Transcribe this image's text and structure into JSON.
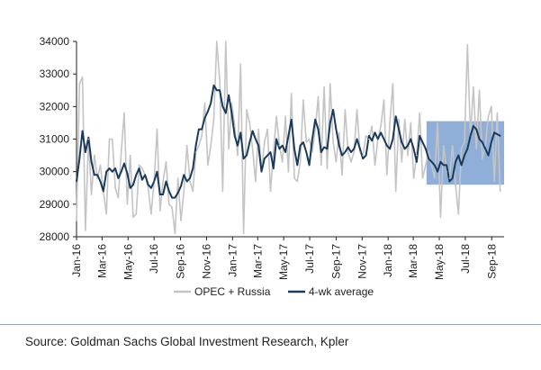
{
  "chart_data": {
    "type": "line",
    "ylim": [
      28000,
      34000
    ],
    "yticks": [
      28000,
      29000,
      30000,
      31000,
      32000,
      33000,
      34000
    ],
    "ytick_labels": [
      "28000",
      "29000",
      "30000",
      "31000",
      "32000",
      "33000",
      "34000"
    ],
    "xlim": [
      "2016-01-01",
      "2018-09-30"
    ],
    "xticks": [
      "2016-01-01",
      "2016-03-01",
      "2016-05-01",
      "2016-07-01",
      "2016-09-01",
      "2016-11-01",
      "2017-01-01",
      "2017-03-01",
      "2017-05-01",
      "2017-07-01",
      "2017-09-01",
      "2017-11-01",
      "2018-01-01",
      "2018-03-01",
      "2018-05-01",
      "2018-07-01",
      "2018-09-01"
    ],
    "xtick_labels": [
      "Jan-16",
      "Mar-16",
      "May-16",
      "Jul-16",
      "Sep-16",
      "Nov-16",
      "Jan-17",
      "Mar-17",
      "May-17",
      "Jul-17",
      "Sep-17",
      "Nov-17",
      "Jan-18",
      "Mar-18",
      "May-18",
      "Jul-18",
      "Sep-18"
    ],
    "grid": false,
    "legend_position": "bottom",
    "highlight": {
      "x": [
        "2018-04-01",
        "2018-09-30"
      ],
      "y": [
        29600,
        31550
      ],
      "color": "#4a7ec0"
    },
    "series": [
      {
        "name": "OPEC + Russia",
        "color": "#c4c4c4",
        "x": [
          "2016-01-01",
          "2016-01-08",
          "2016-01-15",
          "2016-01-22",
          "2016-01-29",
          "2016-02-05",
          "2016-02-12",
          "2016-02-19",
          "2016-02-26",
          "2016-03-04",
          "2016-03-11",
          "2016-03-18",
          "2016-03-25",
          "2016-04-01",
          "2016-04-08",
          "2016-04-15",
          "2016-04-22",
          "2016-04-29",
          "2016-05-06",
          "2016-05-13",
          "2016-05-20",
          "2016-05-27",
          "2016-06-03",
          "2016-06-10",
          "2016-06-17",
          "2016-06-24",
          "2016-07-01",
          "2016-07-08",
          "2016-07-15",
          "2016-07-22",
          "2016-07-29",
          "2016-08-05",
          "2016-08-12",
          "2016-08-19",
          "2016-08-26",
          "2016-09-02",
          "2016-09-09",
          "2016-09-16",
          "2016-09-23",
          "2016-09-30",
          "2016-10-07",
          "2016-10-14",
          "2016-10-21",
          "2016-10-28",
          "2016-11-04",
          "2016-11-11",
          "2016-11-18",
          "2016-11-25",
          "2016-12-02",
          "2016-12-09",
          "2016-12-16",
          "2016-12-23",
          "2016-12-30",
          "2017-01-06",
          "2017-01-13",
          "2017-01-20",
          "2017-01-27",
          "2017-02-03",
          "2017-02-10",
          "2017-02-17",
          "2017-02-24",
          "2017-03-03",
          "2017-03-10",
          "2017-03-17",
          "2017-03-24",
          "2017-03-31",
          "2017-04-07",
          "2017-04-14",
          "2017-04-21",
          "2017-04-28",
          "2017-05-05",
          "2017-05-12",
          "2017-05-19",
          "2017-05-26",
          "2017-06-02",
          "2017-06-09",
          "2017-06-16",
          "2017-06-23",
          "2017-06-30",
          "2017-07-07",
          "2017-07-14",
          "2017-07-21",
          "2017-07-28",
          "2017-08-04",
          "2017-08-11",
          "2017-08-18",
          "2017-08-25",
          "2017-09-01",
          "2017-09-08",
          "2017-09-15",
          "2017-09-22",
          "2017-09-29",
          "2017-10-06",
          "2017-10-13",
          "2017-10-20",
          "2017-10-27",
          "2017-11-03",
          "2017-11-10",
          "2017-11-17",
          "2017-11-24",
          "2017-12-01",
          "2017-12-08",
          "2017-12-15",
          "2017-12-22",
          "2017-12-29",
          "2018-01-05",
          "2018-01-12",
          "2018-01-19",
          "2018-01-26",
          "2018-02-02",
          "2018-02-09",
          "2018-02-16",
          "2018-02-23",
          "2018-03-02",
          "2018-03-09",
          "2018-03-16",
          "2018-03-23",
          "2018-03-30",
          "2018-04-06",
          "2018-04-13",
          "2018-04-20",
          "2018-04-27",
          "2018-05-04",
          "2018-05-11",
          "2018-05-18",
          "2018-05-25",
          "2018-06-01",
          "2018-06-08",
          "2018-06-15",
          "2018-06-22",
          "2018-06-29",
          "2018-07-06",
          "2018-07-13",
          "2018-07-20",
          "2018-07-27",
          "2018-08-03",
          "2018-08-10",
          "2018-08-17",
          "2018-08-24",
          "2018-08-31",
          "2018-09-07",
          "2018-09-14",
          "2018-09-21"
        ],
        "values": [
          28500,
          32700,
          32900,
          28200,
          31000,
          29300,
          30500,
          29800,
          30200,
          29400,
          28700,
          31000,
          31000,
          29500,
          29200,
          30600,
          31800,
          29000,
          30500,
          28600,
          28700,
          30200,
          30100,
          29900,
          29500,
          28700,
          29700,
          31300,
          28800,
          29700,
          30300,
          29000,
          28900,
          28100,
          29800,
          28500,
          29400,
          30800,
          29700,
          29400,
          30600,
          30800,
          31100,
          32100,
          30200,
          30800,
          31600,
          34000,
          32800,
          29400,
          34000,
          30700,
          32100,
          31400,
          30500,
          33300,
          28100,
          31900,
          31500,
          30700,
          29700,
          31300,
          30000,
          30900,
          31300,
          29400,
          30600,
          31700,
          30800,
          30300,
          31700,
          30000,
          32400,
          29800,
          29700,
          30300,
          32200,
          30900,
          31000,
          30600,
          31300,
          32300,
          30200,
          32600,
          30100,
          32700,
          30900,
          30300,
          31200,
          29900,
          31900,
          30600,
          30300,
          30600,
          31900,
          30600,
          30500,
          31100,
          31000,
          31400,
          30200,
          31000,
          31400,
          32200,
          29900,
          31500,
          32700,
          29400,
          31600,
          30300,
          31600,
          30500,
          31500,
          29800,
          30500,
          31800,
          29800,
          30200,
          30600,
          30200,
          29800,
          31500,
          28600,
          30800,
          30000,
          29800,
          30800,
          29600,
          28700,
          30700,
          30900,
          33900,
          31100,
          32600,
          30700,
          32500,
          30400,
          30800,
          31700,
          32000,
          29700,
          31800,
          29400
        ]
      },
      {
        "name": "4-wk average",
        "color": "#1a3a5c",
        "x": [
          "2016-01-01",
          "2016-01-08",
          "2016-01-15",
          "2016-01-22",
          "2016-01-29",
          "2016-02-05",
          "2016-02-12",
          "2016-02-19",
          "2016-02-26",
          "2016-03-04",
          "2016-03-11",
          "2016-03-18",
          "2016-03-25",
          "2016-04-01",
          "2016-04-08",
          "2016-04-15",
          "2016-04-22",
          "2016-04-29",
          "2016-05-06",
          "2016-05-13",
          "2016-05-20",
          "2016-05-27",
          "2016-06-03",
          "2016-06-10",
          "2016-06-17",
          "2016-06-24",
          "2016-07-01",
          "2016-07-08",
          "2016-07-15",
          "2016-07-22",
          "2016-07-29",
          "2016-08-05",
          "2016-08-12",
          "2016-08-19",
          "2016-08-26",
          "2016-09-02",
          "2016-09-09",
          "2016-09-16",
          "2016-09-23",
          "2016-09-30",
          "2016-10-07",
          "2016-10-14",
          "2016-10-21",
          "2016-10-28",
          "2016-11-04",
          "2016-11-11",
          "2016-11-18",
          "2016-11-25",
          "2016-12-02",
          "2016-12-09",
          "2016-12-16",
          "2016-12-23",
          "2016-12-30",
          "2017-01-06",
          "2017-01-13",
          "2017-01-20",
          "2017-01-27",
          "2017-02-03",
          "2017-02-10",
          "2017-02-17",
          "2017-02-24",
          "2017-03-03",
          "2017-03-10",
          "2017-03-17",
          "2017-03-24",
          "2017-03-31",
          "2017-04-07",
          "2017-04-14",
          "2017-04-21",
          "2017-04-28",
          "2017-05-05",
          "2017-05-12",
          "2017-05-19",
          "2017-05-26",
          "2017-06-02",
          "2017-06-09",
          "2017-06-16",
          "2017-06-23",
          "2017-06-30",
          "2017-07-07",
          "2017-07-14",
          "2017-07-21",
          "2017-07-28",
          "2017-08-04",
          "2017-08-11",
          "2017-08-18",
          "2017-08-25",
          "2017-09-01",
          "2017-09-08",
          "2017-09-15",
          "2017-09-22",
          "2017-09-29",
          "2017-10-06",
          "2017-10-13",
          "2017-10-20",
          "2017-10-27",
          "2017-11-03",
          "2017-11-10",
          "2017-11-17",
          "2017-11-24",
          "2017-12-01",
          "2017-12-08",
          "2017-12-15",
          "2017-12-22",
          "2017-12-29",
          "2018-01-05",
          "2018-01-12",
          "2018-01-19",
          "2018-01-26",
          "2018-02-02",
          "2018-02-09",
          "2018-02-16",
          "2018-02-23",
          "2018-03-02",
          "2018-03-09",
          "2018-03-16",
          "2018-03-23",
          "2018-03-30",
          "2018-04-06",
          "2018-04-13",
          "2018-04-20",
          "2018-04-27",
          "2018-05-04",
          "2018-05-11",
          "2018-05-18",
          "2018-05-25",
          "2018-06-01",
          "2018-06-08",
          "2018-06-15",
          "2018-06-22",
          "2018-06-29",
          "2018-07-06",
          "2018-07-13",
          "2018-07-20",
          "2018-07-27",
          "2018-08-03",
          "2018-08-10",
          "2018-08-17",
          "2018-08-24",
          "2018-08-31",
          "2018-09-07",
          "2018-09-14",
          "2018-09-21"
        ],
        "values": [
          29700,
          30400,
          31250,
          30600,
          31050,
          30300,
          29900,
          29900,
          29700,
          29400,
          30000,
          30100,
          30000,
          30100,
          29800,
          30000,
          30250,
          29950,
          29500,
          29600,
          29900,
          30100,
          29750,
          29900,
          29600,
          29500,
          29700,
          30000,
          29300,
          29300,
          29700,
          29400,
          29200,
          29200,
          29350,
          29550,
          29900,
          29700,
          29800,
          30100,
          30800,
          31300,
          31300,
          31650,
          31850,
          32100,
          32650,
          32500,
          32500,
          32000,
          31800,
          32350,
          31800,
          31100,
          30800,
          31200,
          30400,
          30500,
          30900,
          31250,
          31000,
          30800,
          30000,
          30400,
          30500,
          30600,
          30100,
          31000,
          30700,
          30800,
          30600,
          31100,
          31600,
          30700,
          30200,
          30800,
          30900,
          30600,
          30200,
          31000,
          31600,
          31300,
          30600,
          30750,
          30700,
          31500,
          31900,
          31300,
          30800,
          30500,
          30600,
          30750,
          30600,
          30700,
          31000,
          30700,
          30400,
          30500,
          31100,
          30950,
          31200,
          31000,
          31200,
          31000,
          30800,
          30700,
          31000,
          31700,
          31300,
          30900,
          30700,
          30800,
          31000,
          30700,
          30300,
          31100,
          30900,
          30700,
          30400,
          30300,
          30200,
          30000,
          30300,
          30200,
          30200,
          29700,
          29800,
          30300,
          30500,
          30200,
          30500,
          30700,
          31100,
          31400,
          31300,
          31000,
          30900,
          30700,
          30500,
          30900,
          31200,
          31150,
          31100
        ]
      }
    ]
  },
  "source": "Source: Goldman Sachs Global Investment Research, Kpler"
}
